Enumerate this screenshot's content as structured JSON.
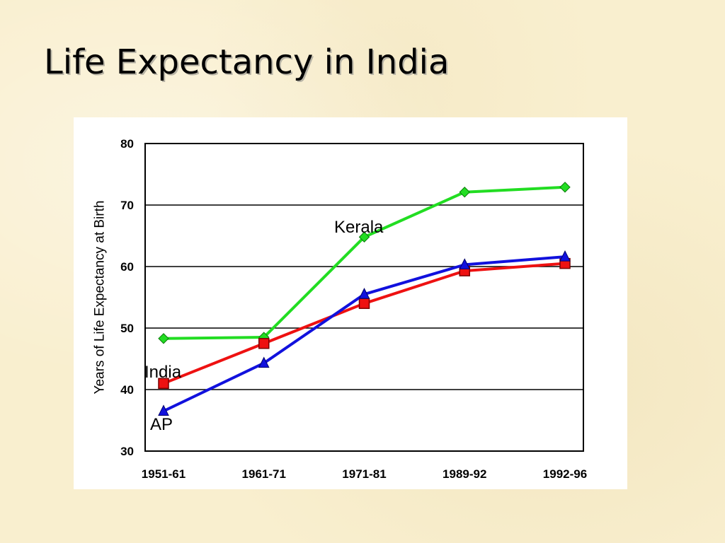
{
  "slide": {
    "title": "Life Expectancy in India"
  },
  "chart_data": {
    "type": "line",
    "categories": [
      "1951-61",
      "1961-71",
      "1971-81",
      "1989-92",
      "1992-96"
    ],
    "ylabel": "Years of Life Expectancy at Birth",
    "ylim": [
      30,
      80
    ],
    "yticks": [
      30,
      40,
      50,
      60,
      70,
      80
    ],
    "grid": true,
    "series": [
      {
        "name": "Kerala",
        "color": "#22dd22",
        "marker": "diamond",
        "values": [
          48.3,
          48.5,
          64.8,
          72.1,
          72.9
        ]
      },
      {
        "name": "India",
        "color": "#ee1111",
        "marker": "square",
        "values": [
          41.0,
          47.5,
          54.0,
          59.3,
          60.5
        ]
      },
      {
        "name": "AP",
        "color": "#1111dd",
        "marker": "triangle",
        "values": [
          36.5,
          44.3,
          55.5,
          60.3,
          61.6
        ]
      }
    ]
  }
}
